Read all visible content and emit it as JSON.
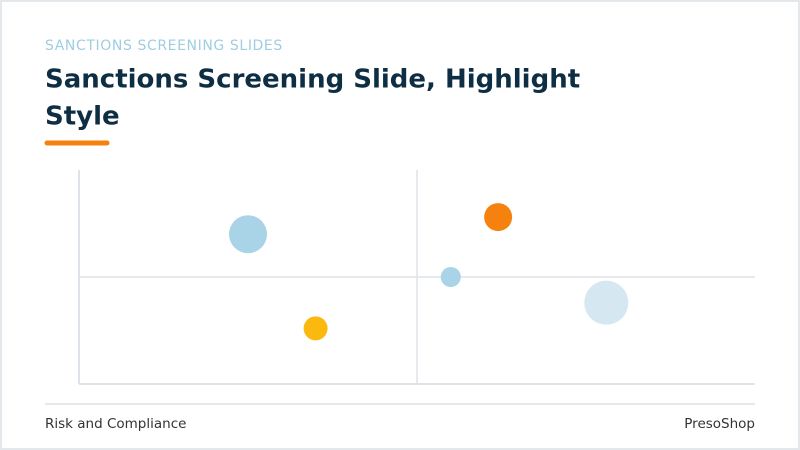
{
  "header": {
    "kicker": "SANCTIONS SCREENING SLIDES",
    "title_line1": "Sanctions Screening Slide, Highlight",
    "title_line2": "Style"
  },
  "chart_data": {
    "type": "bubble",
    "x": [
      25,
      35,
      62,
      55,
      78
    ],
    "values": [
      70,
      26,
      78,
      50,
      38
    ],
    "sizes": [
      19,
      12,
      14,
      10,
      22
    ],
    "colors": [
      "#a9d3e6",
      "#fbb80f",
      "#f5820f",
      "#a9d3e6",
      "#d5e7f1"
    ],
    "xlim": [
      0,
      100
    ],
    "ylim": [
      0,
      100
    ]
  },
  "footer": {
    "left": "Risk and Compliance",
    "right": "PresoShop"
  }
}
